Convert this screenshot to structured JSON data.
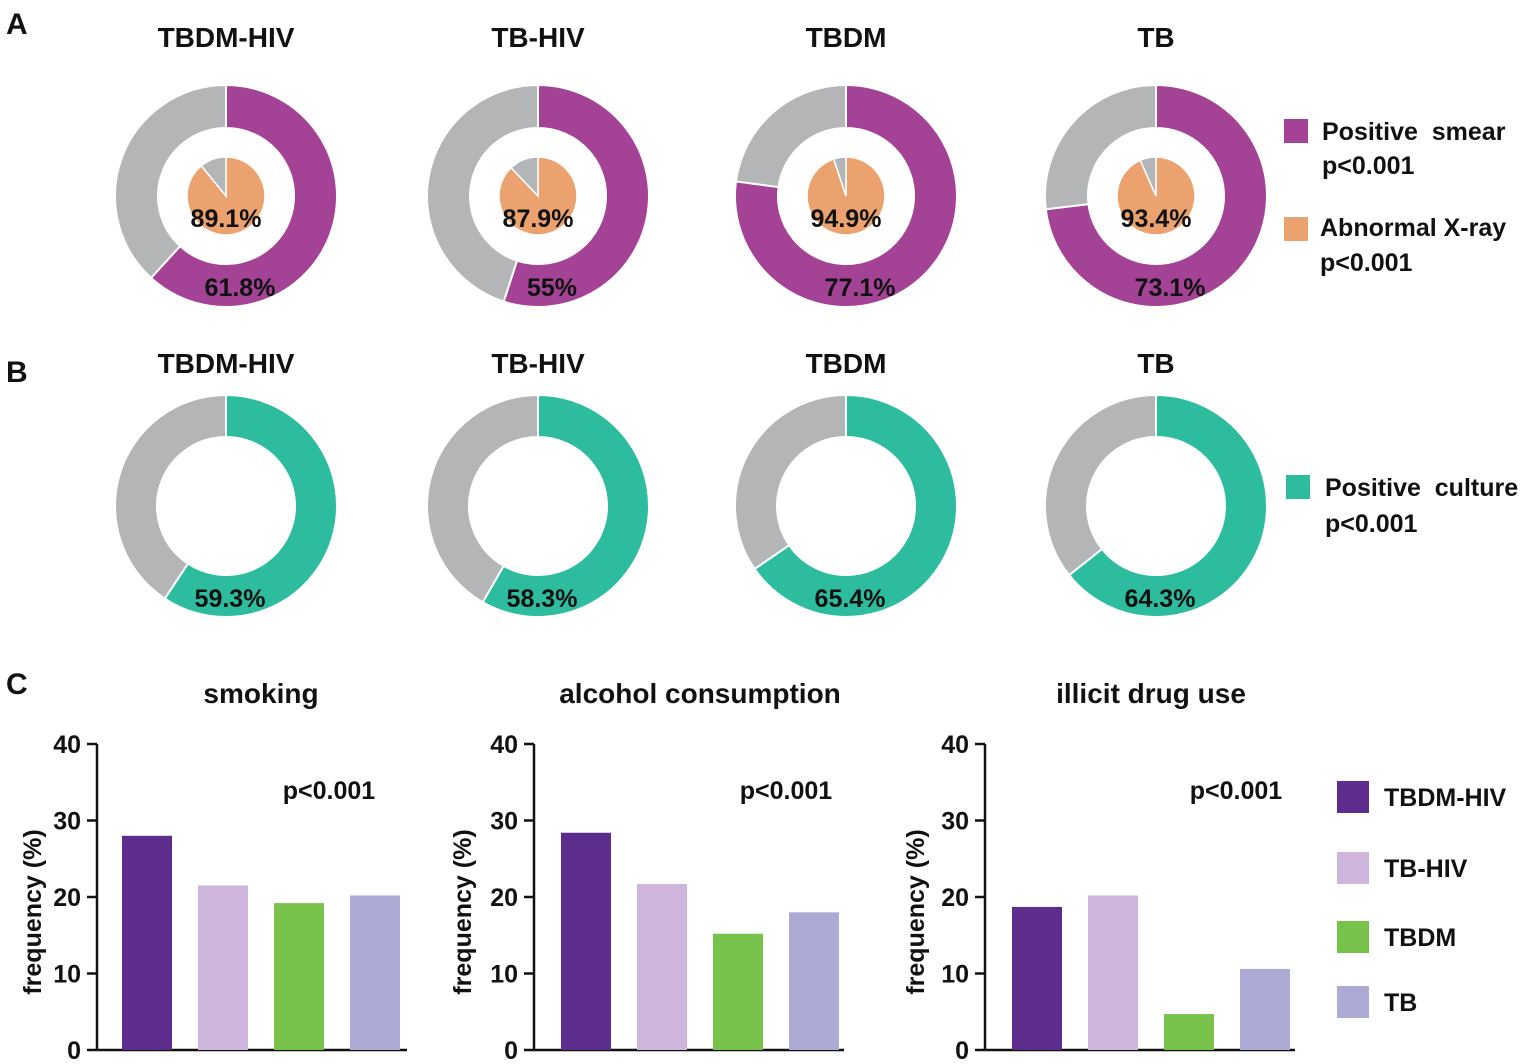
{
  "panel_letters": {
    "a": "A",
    "b": "B",
    "c": "C"
  },
  "colors": {
    "smear": "#a44396",
    "xray": "#eba26f",
    "culture": "#2ebc9f",
    "grey": "#b4b5b7",
    "TBDM-HIV": "#5c2d8c",
    "TB-HIV": "#cdb5db",
    "TBDM": "#78c24c",
    "TB": "#aeaad6"
  },
  "panel_a": {
    "legend": [
      {
        "name": "Positive  smear",
        "p": "p<0.001",
        "color_key": "smear"
      },
      {
        "name": "Abnormal X-ray",
        "p": "p<0.001",
        "color_key": "xray"
      }
    ]
  },
  "panel_b": {
    "legend": [
      {
        "name": "Positive  culture",
        "p": "p<0.001",
        "color_key": "culture"
      }
    ]
  },
  "panel_c": {
    "legend": [
      "TBDM-HIV",
      "TB-HIV",
      "TBDM",
      "TB"
    ]
  },
  "chart_data": [
    {
      "type": "pie",
      "panel": "A",
      "description": "Outer ring: positive smear; inner pie: abnormal X-ray",
      "groups": [
        "TBDM-HIV",
        "TB-HIV",
        "TBDM",
        "TB"
      ],
      "series": [
        {
          "name": "Positive smear",
          "values": [
            61.8,
            55,
            77.1,
            73.1
          ],
          "labels": [
            "61.8%",
            "55%",
            "77.1%",
            "73.1%"
          ]
        },
        {
          "name": "Abnormal X-ray",
          "values": [
            89.1,
            87.9,
            94.9,
            93.4
          ],
          "labels": [
            "89.1%",
            "87.9%",
            "94.9%",
            "93.4%"
          ]
        }
      ]
    },
    {
      "type": "pie",
      "panel": "B",
      "description": "Ring: positive culture",
      "groups": [
        "TBDM-HIV",
        "TB-HIV",
        "TBDM",
        "TB"
      ],
      "series": [
        {
          "name": "Positive culture",
          "values": [
            59.3,
            58.3,
            65.4,
            64.3
          ],
          "labels": [
            "59.3%",
            "58.3%",
            "65.4%",
            "64.3%"
          ]
        }
      ]
    },
    {
      "type": "bar",
      "panel": "C",
      "title": "smoking",
      "categories": [
        "TBDM-HIV",
        "TB-HIV",
        "TBDM",
        "TB"
      ],
      "values": [
        28,
        21.5,
        19.2,
        20.2
      ],
      "ylabel": "frequency (%)",
      "ylim": [
        0,
        40
      ],
      "yticks": [
        "0",
        "10",
        "20",
        "30",
        "40"
      ],
      "annotation": "p<0.001"
    },
    {
      "type": "bar",
      "panel": "C",
      "title": "alcohol consumption",
      "categories": [
        "TBDM-HIV",
        "TB-HIV",
        "TBDM",
        "TB"
      ],
      "values": [
        28.4,
        21.7,
        15.2,
        18
      ],
      "ylabel": "frequency (%)",
      "ylim": [
        0,
        40
      ],
      "yticks": [
        "0",
        "10",
        "20",
        "30",
        "40"
      ],
      "annotation": "p<0.001"
    },
    {
      "type": "bar",
      "panel": "C",
      "title": "illicit drug use",
      "categories": [
        "TBDM-HIV",
        "TB-HIV",
        "TBDM",
        "TB"
      ],
      "values": [
        18.7,
        20.2,
        4.7,
        10.6
      ],
      "ylabel": "frequency (%)",
      "ylim": [
        0,
        40
      ],
      "yticks": [
        "0",
        "10",
        "20",
        "30",
        "40"
      ],
      "annotation": "p<0.001"
    }
  ]
}
